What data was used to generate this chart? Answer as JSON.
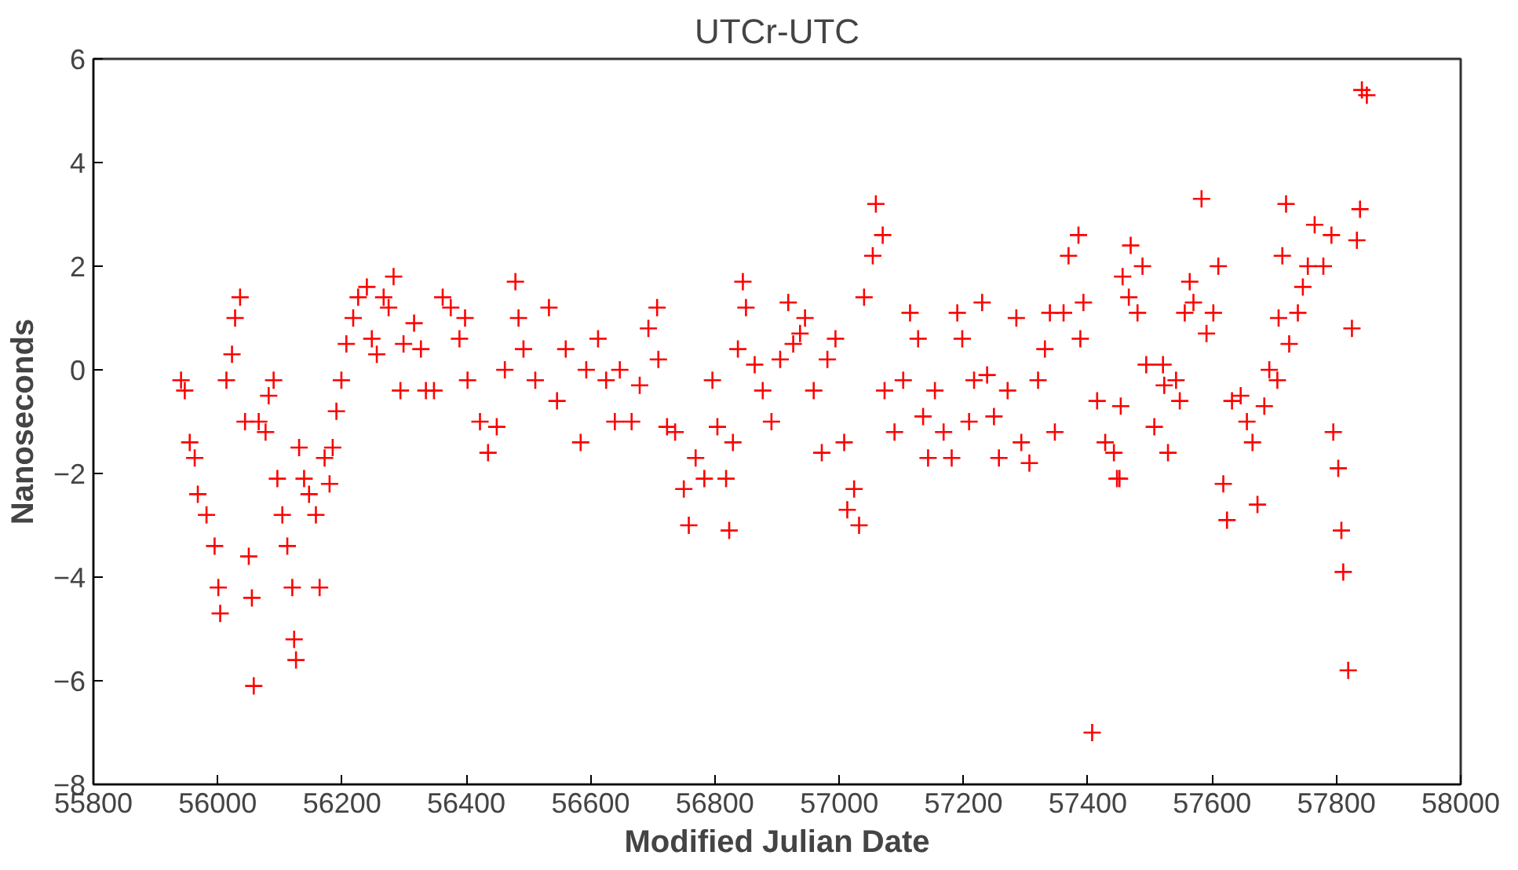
{
  "chart_data": {
    "type": "scatter",
    "title": "UTCr-UTC",
    "xlabel": "Modified Julian Date",
    "ylabel": "Nanoseconds",
    "xlim": [
      55800,
      58000
    ],
    "xticks": [
      55800,
      56000,
      56200,
      56400,
      56600,
      56800,
      57000,
      57200,
      57400,
      57600,
      57800,
      58000
    ],
    "ylim": [
      -8,
      6
    ],
    "yticks": [
      -8,
      -6,
      -4,
      -2,
      0,
      2,
      4,
      6
    ],
    "grid": false,
    "marker": "cross",
    "series": [
      {
        "color": "#ff0000",
        "x": [
          55941,
          55947,
          55955,
          55963,
          55968,
          55982,
          55995,
          56001,
          56004,
          56014,
          56023,
          56028,
          56036,
          56044,
          56050,
          56055,
          56058,
          56066,
          56077,
          56082,
          56090,
          56096,
          56104,
          56112,
          56120,
          56123,
          56126,
          56131,
          56139,
          56147,
          56158,
          56164,
          56172,
          56180,
          56185,
          56191,
          56199,
          56207,
          56218,
          56226,
          56240,
          56248,
          56256,
          56267,
          56275,
          56283,
          56294,
          56299,
          56316,
          56327,
          56335,
          56348,
          56362,
          56375,
          56389,
          56398,
          56402,
          56422,
          56435,
          56449,
          56462,
          56479,
          56484,
          56492,
          56511,
          56533,
          56546,
          56560,
          56584,
          56593,
          56612,
          56625,
          56639,
          56647,
          56666,
          56679,
          56693,
          56707,
          56709,
          56723,
          56736,
          56750,
          56758,
          56769,
          56783,
          56796,
          56804,
          56818,
          56823,
          56829,
          56837,
          56845,
          56850,
          56864,
          56877,
          56891,
          56905,
          56918,
          56926,
          56937,
          56945,
          56959,
          56972,
          56981,
          56994,
          57008,
          57013,
          57024,
          57032,
          57040,
          57054,
          57059,
          57070,
          57073,
          57089,
          57103,
          57114,
          57127,
          57135,
          57143,
          57154,
          57168,
          57181,
          57190,
          57198,
          57209,
          57217,
          57230,
          57238,
          57249,
          57257,
          57271,
          57285,
          57293,
          57306,
          57320,
          57331,
          57339,
          57347,
          57361,
          57369,
          57385,
          57388,
          57393,
          57407,
          57415,
          57428,
          57442,
          57447,
          57451,
          57453,
          57456,
          57466,
          57469,
          57480,
          57488,
          57494,
          57507,
          57521,
          57523,
          57529,
          57542,
          57548,
          57556,
          57564,
          57570,
          57583,
          57591,
          57602,
          57610,
          57618,
          57624,
          57632,
          57646,
          57656,
          57665,
          57673,
          57684,
          57692,
          57705,
          57707,
          57713,
          57719,
          57724,
          57738,
          57746,
          57754,
          57765,
          57779,
          57792,
          57795,
          57803,
          57808,
          57811,
          57819,
          57825,
          57833,
          57838,
          57841,
          57849
        ],
        "values": [
          -0.2,
          -0.4,
          -1.4,
          -1.7,
          -2.4,
          -2.8,
          -3.4,
          -4.2,
          -4.7,
          -0.2,
          0.3,
          1.0,
          1.4,
          -1.0,
          -3.6,
          -4.4,
          -6.1,
          -1.0,
          -1.2,
          -0.5,
          -0.2,
          -2.1,
          -2.8,
          -3.4,
          -4.2,
          -5.2,
          -5.6,
          -1.5,
          -2.1,
          -2.4,
          -2.8,
          -4.2,
          -1.7,
          -2.2,
          -1.5,
          -0.8,
          -0.2,
          0.5,
          1.0,
          1.4,
          1.6,
          0.6,
          0.3,
          1.4,
          1.2,
          1.8,
          -0.4,
          0.5,
          0.9,
          0.4,
          -0.4,
          -0.4,
          1.4,
          1.2,
          0.6,
          1.0,
          -0.2,
          -1.0,
          -1.6,
          -1.1,
          0.0,
          1.7,
          1.0,
          0.4,
          -0.2,
          1.2,
          -0.6,
          0.4,
          -1.4,
          0.0,
          0.6,
          -0.2,
          -1.0,
          0.0,
          -1.0,
          -0.3,
          0.8,
          1.2,
          0.2,
          -1.1,
          -1.2,
          -2.3,
          -3.0,
          -1.7,
          -2.1,
          -0.2,
          -1.1,
          -2.1,
          -3.1,
          -1.4,
          0.4,
          1.7,
          1.2,
          0.1,
          -0.4,
          -1.0,
          0.2,
          1.3,
          0.5,
          0.7,
          1.0,
          -0.4,
          -1.6,
          0.2,
          0.6,
          -1.4,
          -2.7,
          -2.3,
          -3.0,
          1.4,
          2.2,
          3.2,
          2.6,
          -0.4,
          -1.2,
          -0.2,
          1.1,
          0.6,
          -0.9,
          -1.7,
          -0.4,
          -1.2,
          -1.7,
          1.1,
          0.6,
          -1.0,
          -0.2,
          1.3,
          -0.1,
          -0.9,
          -1.7,
          -0.4,
          1.0,
          -1.4,
          -1.8,
          -0.2,
          0.4,
          1.1,
          -1.2,
          1.1,
          2.2,
          2.6,
          0.6,
          1.3,
          -7.0,
          -0.6,
          -1.4,
          -1.6,
          -2.1,
          -2.1,
          -0.7,
          1.8,
          1.4,
          2.4,
          1.1,
          2.0,
          0.1,
          -1.1,
          0.1,
          -0.3,
          -1.6,
          -0.2,
          -0.6,
          1.1,
          1.7,
          1.3,
          3.3,
          0.7,
          1.1,
          2.0,
          -2.2,
          -2.9,
          -0.6,
          -0.5,
          -1.0,
          -1.4,
          -2.6,
          -0.7,
          0.0,
          -0.2,
          1.0,
          2.2,
          3.2,
          0.5,
          1.1,
          1.6,
          2.0,
          2.8,
          2.0,
          2.6,
          -1.2,
          -1.9,
          -3.1,
          -3.9,
          -5.8,
          0.8,
          2.5,
          3.1,
          5.4,
          5.3
        ]
      }
    ]
  }
}
